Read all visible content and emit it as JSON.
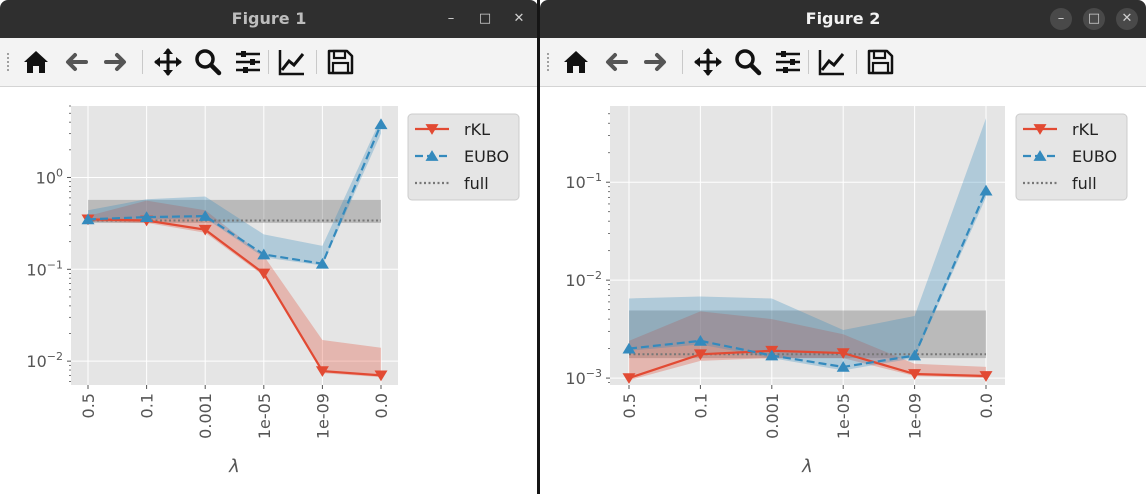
{
  "windows": [
    {
      "title": "Figure 1",
      "active": false
    },
    {
      "title": "Figure 2",
      "active": true
    }
  ],
  "window_controls": {
    "minimize": "–",
    "maximize": "□",
    "close": "✕"
  },
  "toolbar_icons": [
    "home-icon",
    "back-arrow-icon",
    "forward-arrow-icon",
    "pan-icon",
    "zoom-icon",
    "subplots-config-icon",
    "edit-axes-icon",
    "save-icon"
  ],
  "colors": {
    "rKL": "#e24a33",
    "EUBO": "#348abd",
    "full": "#777777",
    "axes_bg": "#e5e5e5"
  },
  "chart_data": [
    {
      "type": "line",
      "xlabel": "λ",
      "yscale": "log",
      "ylim": [
        0.0055,
        6.0
      ],
      "yticks": [
        {
          "value": 1.0,
          "base": "10",
          "exp": "0"
        },
        {
          "value": 0.1,
          "base": "10",
          "exp": "−1"
        },
        {
          "value": 0.01,
          "base": "10",
          "exp": "−2"
        }
      ],
      "categories": [
        "0.5",
        "0.1",
        "0.001",
        "1e-05",
        "1e-09",
        "0.0"
      ],
      "legend": {
        "position": "top-right"
      },
      "grid": true,
      "series": [
        {
          "name": "rKL",
          "marker": "triangle-down",
          "linestyle": "solid",
          "values": [
            0.35,
            0.34,
            0.27,
            0.09,
            0.0078,
            0.007
          ],
          "band_low": [
            0.33,
            0.32,
            0.25,
            0.085,
            0.0074,
            0.0067
          ],
          "band_high": [
            0.38,
            0.56,
            0.44,
            0.14,
            0.017,
            0.014
          ]
        },
        {
          "name": "EUBO",
          "marker": "triangle-up",
          "linestyle": "dashed",
          "values": [
            0.35,
            0.37,
            0.38,
            0.145,
            0.115,
            3.8
          ],
          "band_low": [
            0.33,
            0.35,
            0.36,
            0.135,
            0.11,
            3.0
          ],
          "band_high": [
            0.44,
            0.58,
            0.62,
            0.24,
            0.18,
            4.4
          ]
        },
        {
          "name": "full",
          "linestyle": "dotted",
          "value": 0.34,
          "band_low": 0.32,
          "band_high": 0.57
        }
      ]
    },
    {
      "type": "line",
      "xlabel": "λ",
      "yscale": "log",
      "ylim": [
        0.00085,
        0.6
      ],
      "yticks": [
        {
          "value": 0.1,
          "base": "10",
          "exp": "−1"
        },
        {
          "value": 0.01,
          "base": "10",
          "exp": "−2"
        },
        {
          "value": 0.001,
          "base": "10",
          "exp": "−3"
        }
      ],
      "categories": [
        "0.5",
        "0.1",
        "0.001",
        "1e-05",
        "1e-09",
        "0.0"
      ],
      "legend": {
        "position": "top-right"
      },
      "grid": true,
      "series": [
        {
          "name": "rKL",
          "marker": "triangle-down",
          "linestyle": "solid",
          "values": [
            0.001,
            0.00175,
            0.0019,
            0.0018,
            0.0011,
            0.00105
          ],
          "band_low": [
            0.00095,
            0.0015,
            0.0016,
            0.0016,
            0.00105,
            0.001
          ],
          "band_high": [
            0.0024,
            0.0048,
            0.004,
            0.0028,
            0.0014,
            0.0013
          ]
        },
        {
          "name": "EUBO",
          "marker": "triangle-up",
          "linestyle": "dashed",
          "values": [
            0.002,
            0.0024,
            0.0017,
            0.0013,
            0.0017,
            0.082
          ],
          "band_low": [
            0.0019,
            0.0022,
            0.0016,
            0.0012,
            0.0016,
            0.07
          ],
          "band_high": [
            0.0065,
            0.0068,
            0.0065,
            0.0031,
            0.0043,
            0.45
          ]
        },
        {
          "name": "full",
          "linestyle": "dotted",
          "value": 0.00175,
          "band_low": 0.0016,
          "band_high": 0.0049
        }
      ]
    }
  ]
}
